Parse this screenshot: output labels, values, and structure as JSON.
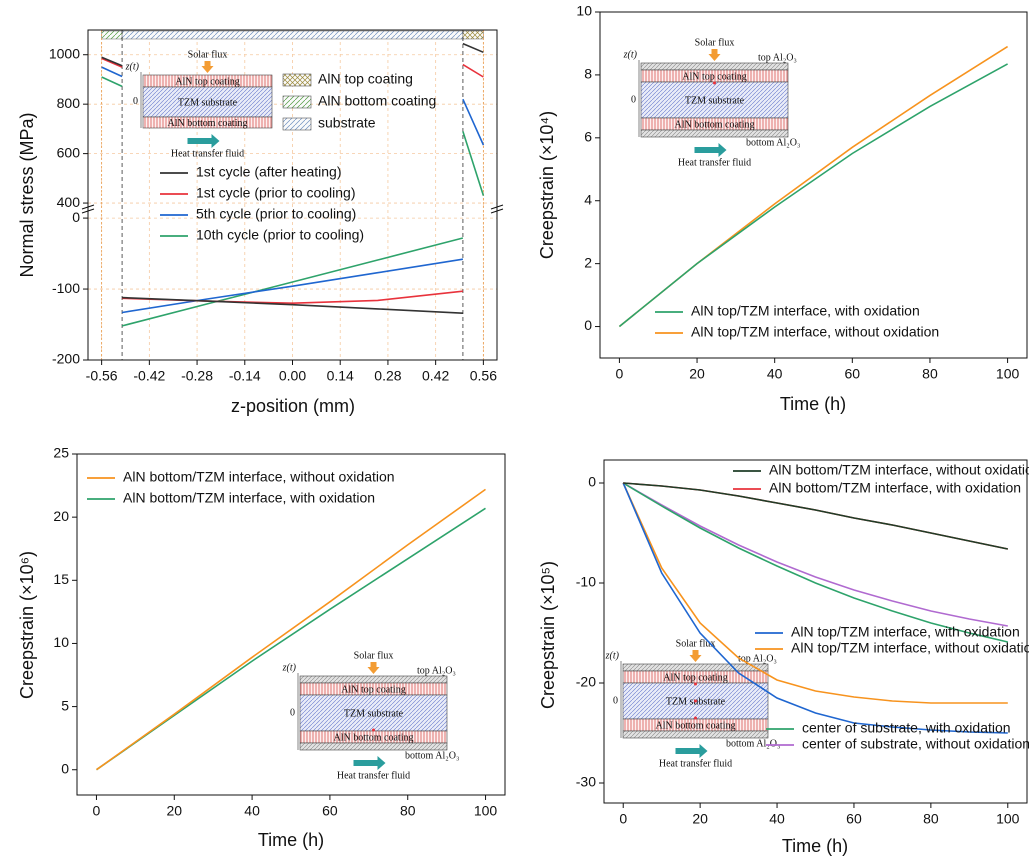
{
  "chart_data": [
    {
      "type": "line",
      "x_label": "z-position (mm)",
      "y_label": "Normal stress (MPa)",
      "x": [
        -0.56,
        -0.5,
        -0.5,
        -0.5,
        -0.25,
        0,
        0.25,
        0.5,
        0.5,
        0.5,
        0.56
      ],
      "xlim": [
        -0.6,
        0.6
      ],
      "xticks": [
        -0.56,
        -0.42,
        -0.28,
        -0.14,
        {
          "value": 0,
          "label": "0.00"
        },
        0.14,
        0.28,
        0.42,
        0.56
      ],
      "ylim_lower": [
        -200,
        10
      ],
      "ylim_upper": [
        380,
        1100
      ],
      "yticks": [
        -200,
        -100,
        0,
        400,
        600,
        800,
        1000
      ],
      "grid": true,
      "series": [
        {
          "name": "1st cycle (after heating)",
          "color": "#333333",
          "values": [
            990,
            955,
            null,
            -112,
            -117,
            -122,
            -128,
            -134,
            null,
            1045,
            1010
          ]
        },
        {
          "name": "1st cycle (prior to cooling)",
          "color": "#e8323c",
          "values": [
            985,
            950,
            null,
            -113,
            -117,
            -120,
            -116,
            -103,
            null,
            960,
            910
          ]
        },
        {
          "name": "5th cycle (prior to cooling)",
          "color": "#1f66d0",
          "values": [
            950,
            912,
            null,
            -133,
            -114,
            -96,
            -77,
            -58,
            null,
            820,
            635
          ]
        },
        {
          "name": "10th cycle (prior to cooling)",
          "color": "#2ea36b",
          "values": [
            910,
            872,
            null,
            -152,
            -121,
            -90,
            -59,
            -28,
            null,
            690,
            430
          ]
        }
      ],
      "patches": [
        {
          "name": "AlN top coating",
          "color": "#9c8b3c",
          "hatch": "cross"
        },
        {
          "name": "AlN bottom coating",
          "color": "#4f9a3f",
          "hatch": "diagonal"
        },
        {
          "name": "substrate",
          "color": "#6f90c0",
          "hatch": "diagonal"
        }
      ],
      "inset": {
        "solar_flux": "Solar flux",
        "z_axis": "z(t)",
        "origin": "0",
        "top_coating": "AlN top coating",
        "substrate": "TZM substrate",
        "bottom_coating": "AlN bottom coating",
        "fluid": "Heat transfer fluid"
      }
    },
    {
      "type": "line",
      "x_label": "Time (h)",
      "y_label": "Creepstrain (×10⁴)",
      "x": [
        0,
        20,
        40,
        60,
        80,
        100
      ],
      "xlim": [
        -5,
        105
      ],
      "xticks": [
        0,
        20,
        40,
        60,
        80,
        100
      ],
      "ylim": [
        -1,
        10
      ],
      "yticks": [
        0,
        2,
        4,
        6,
        8,
        10
      ],
      "legend": "lower right",
      "series": [
        {
          "name": "AlN top/TZM interface, with oxidation",
          "color": "#2ea36b",
          "values": [
            0,
            2.0,
            3.8,
            5.5,
            7.0,
            8.35
          ]
        },
        {
          "name": "AlN top/TZM interface, without oxidation",
          "color": "#f7931e",
          "values": [
            0,
            2.0,
            3.9,
            5.7,
            7.35,
            8.9
          ]
        }
      ],
      "inset": {
        "solar_flux": "Solar flux",
        "z_axis": "z(t)",
        "origin": "0",
        "top_oxide": "top Al₂O₃",
        "top_coating": "AlN top coating",
        "substrate": "TZM substrate",
        "bottom_coating": "AlN bottom coating",
        "bottom_oxide": "bottom Al₂O₃",
        "fluid": "Heat transfer fluid"
      }
    },
    {
      "type": "line",
      "x_label": "Time (h)",
      "y_label": "Creepstrain (×10⁶)",
      "x": [
        0,
        20,
        40,
        60,
        80,
        100
      ],
      "xlim": [
        -5,
        105
      ],
      "xticks": [
        0,
        20,
        40,
        60,
        80,
        100
      ],
      "ylim": [
        -2,
        25
      ],
      "yticks": [
        0,
        5,
        10,
        15,
        20,
        25
      ],
      "legend": "upper left",
      "series": [
        {
          "name": "AlN bottom/TZM interface, without oxidation",
          "color": "#f7931e",
          "values": [
            0,
            4.4,
            8.9,
            13.3,
            17.8,
            22.2
          ]
        },
        {
          "name": "AlN bottom/TZM interface, with oxidation",
          "color": "#2ea36b",
          "values": [
            0,
            4.3,
            8.6,
            12.7,
            16.7,
            20.7
          ]
        }
      ],
      "inset": {
        "solar_flux": "Solar flux",
        "z_axis": "z(t)",
        "origin": "0",
        "top_oxide": "top Al₂O₃",
        "top_coating": "AlN top coating",
        "substrate": "TZM substrate",
        "bottom_coating": "AlN bottom coating",
        "bottom_oxide": "bottom Al₂O₃",
        "fluid": "Heat transfer fluid"
      }
    },
    {
      "type": "line",
      "x_label": "Time (h)",
      "y_label": "Creepstrain (×10⁵)",
      "x": [
        0,
        10,
        20,
        30,
        40,
        50,
        60,
        70,
        80,
        90,
        100
      ],
      "xlim": [
        -5,
        105
      ],
      "xticks": [
        0,
        20,
        40,
        60,
        80,
        100
      ],
      "ylim": [
        -32,
        2.3
      ],
      "yticks": [
        -30,
        -20,
        -10,
        0
      ],
      "series": [
        {
          "name": "AlN bottom/TZM interface, without oxidation",
          "color": "#1e3d27",
          "legend": "upper right",
          "values": [
            0,
            -0.3,
            -0.7,
            -1.3,
            -2.0,
            -2.7,
            -3.5,
            -4.2,
            -5.0,
            -5.8,
            -6.6
          ]
        },
        {
          "name": "AlN bottom/TZM interface, with oxidation",
          "color": "#e8323c",
          "legend": "upper right",
          "values": [
            0,
            -0.3,
            -0.7,
            -1.3,
            -2.0,
            -2.7,
            -3.5,
            -4.2,
            -5.0,
            -5.8,
            -6.6
          ]
        },
        {
          "name": "AlN top/TZM interface, with oxidation",
          "color": "#1f66d0",
          "legend": "center right",
          "values": [
            0,
            -9,
            -15,
            -19,
            -21.5,
            -23,
            -24,
            -24.4,
            -24.7,
            -24.9,
            -25
          ]
        },
        {
          "name": "AlN top/TZM interface, without oxidation",
          "color": "#f7931e",
          "legend": "center right",
          "values": [
            0,
            -8.5,
            -14,
            -17.5,
            -19.7,
            -20.8,
            -21.4,
            -21.8,
            -22,
            -22,
            -22
          ]
        },
        {
          "name": "center of substrate, with oxidation",
          "color": "#2ea36b",
          "legend": "lower right",
          "values": [
            0,
            -2.3,
            -4.5,
            -6.5,
            -8.3,
            -10,
            -11.5,
            -12.8,
            -14,
            -15,
            -15.9
          ]
        },
        {
          "name": "center of substrate, without oxidation",
          "color": "#b06ad0",
          "legend": "lower right",
          "values": [
            0,
            -2.2,
            -4.3,
            -6.2,
            -7.9,
            -9.4,
            -10.7,
            -11.8,
            -12.8,
            -13.6,
            -14.3
          ]
        }
      ],
      "inset": {
        "solar_flux": "Solar flux",
        "z_axis": "z(t)",
        "origin": "0",
        "top_oxide": "top Al₂O₃",
        "top_coating": "AlN top coating",
        "substrate": "TZM substrate",
        "bottom_coating": "AlN bottom coating",
        "bottom_oxide": "bottom Al₂O₃",
        "fluid": "Heat transfer fluid"
      }
    }
  ]
}
